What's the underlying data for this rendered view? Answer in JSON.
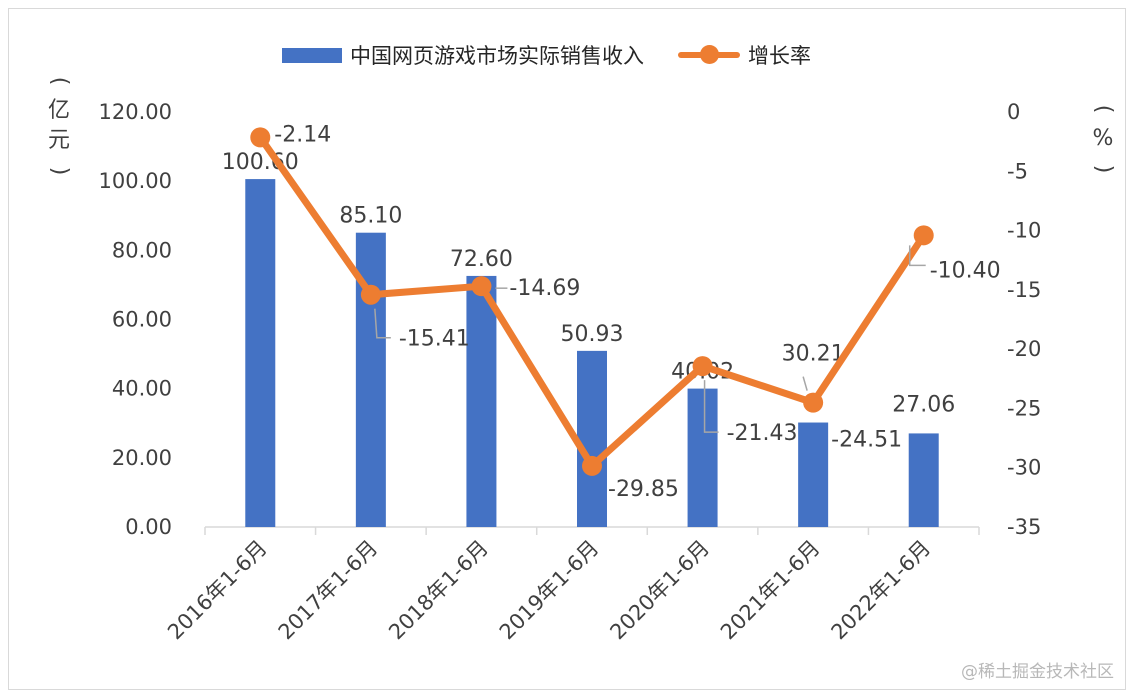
{
  "legend": {
    "bar_label": "中国网页游戏市场实际销售收入",
    "line_label": "增长率"
  },
  "axes": {
    "left_unit": "亿元",
    "right_unit": "%"
  },
  "watermark": "@稀土掘金技术社区",
  "colors": {
    "bar": "#4472c4",
    "line": "#ed7d31",
    "text": "#404040",
    "axis": "#d9d9d9"
  },
  "chart_data": {
    "type": "bar",
    "categories": [
      "2016年1-6月",
      "2017年1-6月",
      "2018年1-6月",
      "2019年1-6月",
      "2020年1-6月",
      "2021年1-6月",
      "2022年1-6月"
    ],
    "series": [
      {
        "name": "中国网页游戏市场实际销售收入",
        "type": "bar",
        "axis": "left",
        "values": [
          100.6,
          85.1,
          72.6,
          50.93,
          40.02,
          30.21,
          27.06
        ],
        "labels": [
          "100.60",
          "85.10",
          "72.60",
          "50.93",
          "40.02",
          "30.21",
          "27.06"
        ]
      },
      {
        "name": "增长率",
        "type": "line",
        "axis": "right",
        "values": [
          -2.14,
          -15.41,
          -14.69,
          -29.85,
          -21.43,
          -24.51,
          -10.4
        ],
        "labels": [
          "-2.14",
          "-15.41",
          "-14.69",
          "-29.85",
          "-21.43",
          "-24.51",
          "-10.40"
        ]
      }
    ],
    "y_left": {
      "min": 0,
      "max": 120,
      "step": 20,
      "ticks": [
        "0.00",
        "20.00",
        "40.00",
        "60.00",
        "80.00",
        "100.00",
        "120.00"
      ]
    },
    "y_right": {
      "min": -35,
      "max": 0,
      "step": 5,
      "ticks": [
        "-35",
        "-30",
        "-25",
        "-20",
        "-15",
        "-10",
        "-5",
        "0"
      ]
    },
    "legend_position": "top-center",
    "grid": false
  }
}
